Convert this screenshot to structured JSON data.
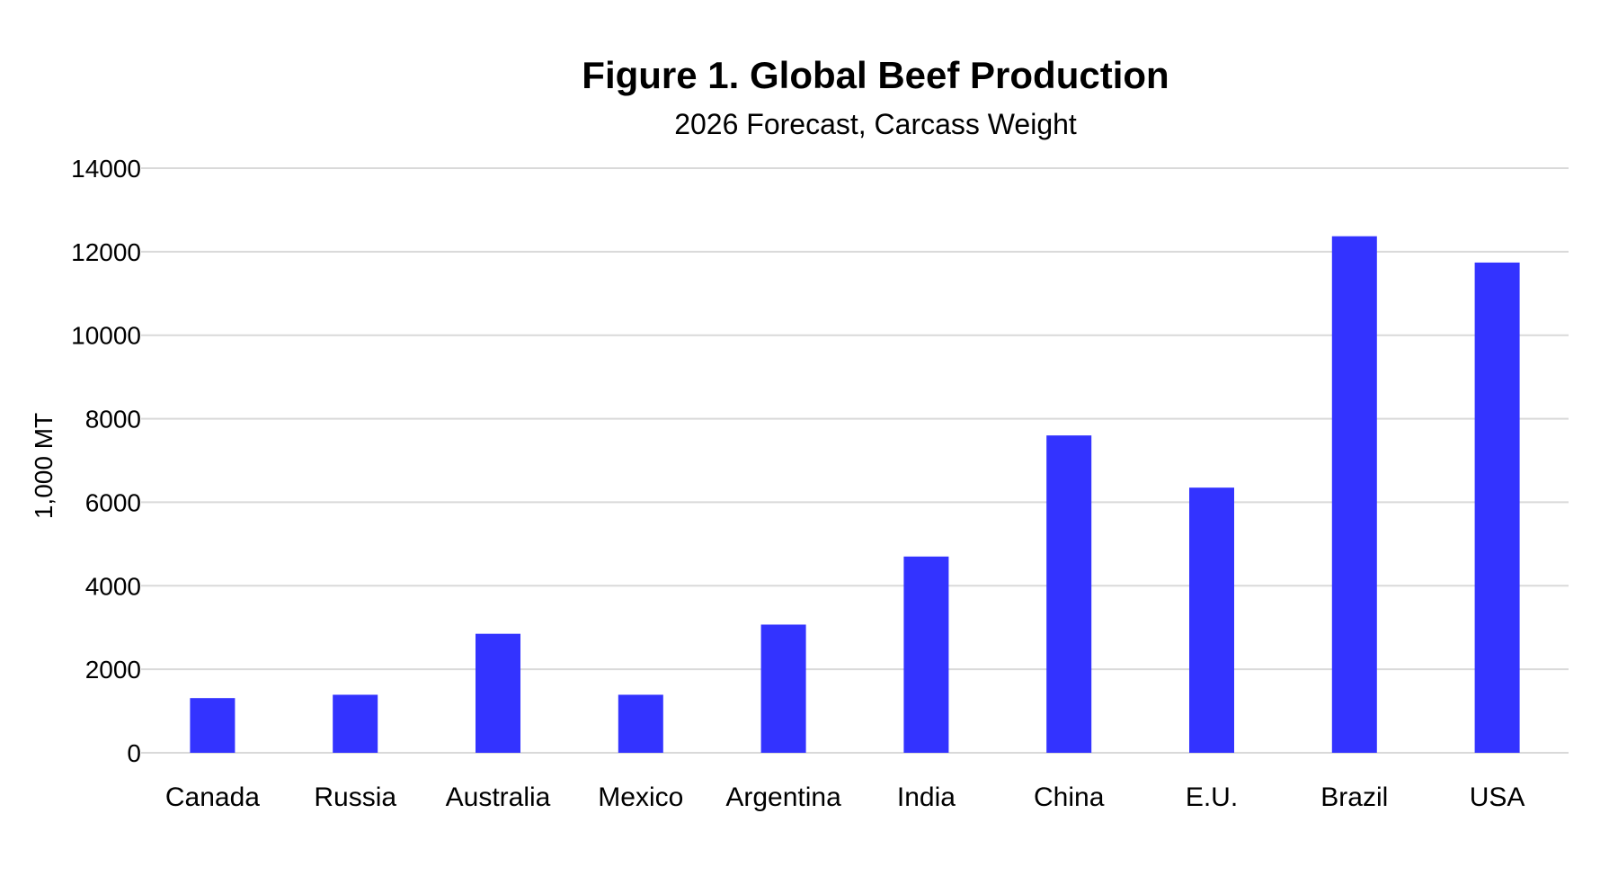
{
  "chart_data": {
    "type": "bar",
    "title": "Figure 1. Global Beef Production",
    "subtitle": "2026 Forecast, Carcass Weight",
    "xlabel": "",
    "ylabel": "1,000 MT",
    "ylim": [
      0,
      14000
    ],
    "yticks": [
      "0",
      "2000",
      "4000",
      "6000",
      "8000",
      "10000",
      "12000",
      "14000"
    ],
    "grid": true,
    "bar_color": "#3333ff",
    "categories": [
      "Canada",
      "Russia",
      "Australia",
      "Mexico",
      "Argentina",
      "India",
      "China",
      "E.U.",
      "Brazil",
      "USA"
    ],
    "values": [
      1310,
      1390,
      2850,
      1390,
      3070,
      4700,
      7600,
      6350,
      12370,
      11740
    ]
  }
}
